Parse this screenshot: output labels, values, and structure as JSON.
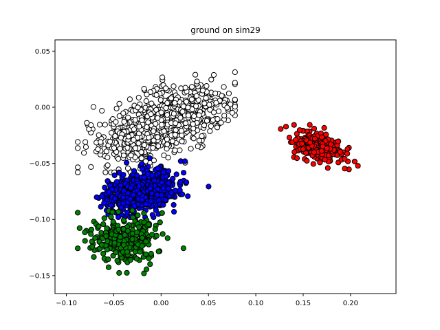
{
  "chart_data": {
    "type": "scatter",
    "title": "ground on sim29",
    "xlabel": "",
    "ylabel": "",
    "xlim": [
      -0.112,
      0.248
    ],
    "ylim": [
      -0.166,
      0.06
    ],
    "xticks": [
      -0.1,
      -0.05,
      0.0,
      0.05,
      0.1,
      0.15,
      0.2
    ],
    "xtick_labels": [
      "−0.10",
      "−0.05",
      "0.00",
      "0.05",
      "0.10",
      "0.15",
      "0.20"
    ],
    "yticks": [
      0.05,
      0.0,
      -0.05,
      -0.1,
      -0.15
    ],
    "ytick_labels": [
      "0.05",
      "0.00",
      "−0.05",
      "−0.10",
      "−0.15"
    ],
    "grid": false,
    "legend": "none",
    "marker_edge_color": "#000000",
    "series": [
      {
        "color": "#ffffff",
        "center": [
          0.0,
          -0.015
        ],
        "spread": [
          0.033,
          0.016
        ],
        "correlation": 0.55,
        "count": 900,
        "extent_x": [
          -0.088,
          0.078
        ],
        "extent_y": [
          -0.058,
          0.042
        ]
      },
      {
        "color": "#0000ff",
        "center": [
          -0.02,
          -0.075
        ],
        "spread": [
          0.019,
          0.01
        ],
        "correlation": 0.2,
        "count": 600,
        "extent_x": [
          -0.068,
          0.062
        ],
        "extent_y": [
          -0.098,
          -0.045
        ]
      },
      {
        "color": "#008000",
        "center": [
          -0.04,
          -0.118
        ],
        "spread": [
          0.018,
          0.011
        ],
        "correlation": 0.1,
        "count": 280,
        "extent_x": [
          -0.088,
          0.04
        ],
        "extent_y": [
          -0.148,
          -0.092
        ]
      },
      {
        "color": "#ff0000",
        "center": [
          0.165,
          -0.035
        ],
        "spread": [
          0.014,
          0.008
        ],
        "correlation": -0.45,
        "count": 230,
        "extent_x": [
          0.12,
          0.226
        ],
        "extent_y": [
          -0.064,
          0.003
        ]
      }
    ]
  }
}
